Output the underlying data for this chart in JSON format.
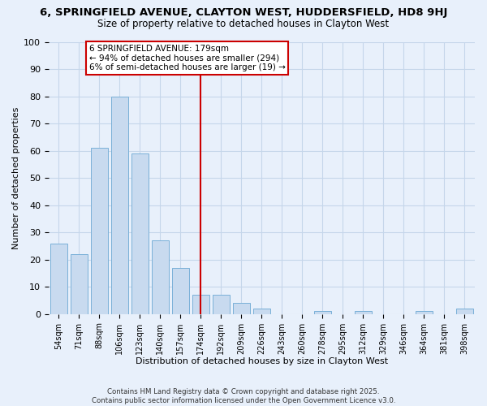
{
  "title": "6, SPRINGFIELD AVENUE, CLAYTON WEST, HUDDERSFIELD, HD8 9HJ",
  "subtitle": "Size of property relative to detached houses in Clayton West",
  "xlabel": "Distribution of detached houses by size in Clayton West",
  "ylabel": "Number of detached properties",
  "categories": [
    "54sqm",
    "71sqm",
    "88sqm",
    "106sqm",
    "123sqm",
    "140sqm",
    "157sqm",
    "174sqm",
    "192sqm",
    "209sqm",
    "226sqm",
    "243sqm",
    "260sqm",
    "278sqm",
    "295sqm",
    "312sqm",
    "329sqm",
    "346sqm",
    "364sqm",
    "381sqm",
    "398sqm"
  ],
  "values": [
    26,
    22,
    61,
    80,
    59,
    27,
    17,
    7,
    7,
    4,
    2,
    0,
    0,
    1,
    0,
    1,
    0,
    0,
    1,
    0,
    2
  ],
  "bar_color": "#c8daef",
  "bar_edge_color": "#7ab0d8",
  "grid_color": "#c5d6ea",
  "background_color": "#e8f0fb",
  "vline_color": "#cc0000",
  "annotation_line1": "6 SPRINGFIELD AVENUE: 179sqm",
  "annotation_line2": "← 94% of detached houses are smaller (294)",
  "annotation_line3": "6% of semi-detached houses are larger (19) →",
  "annotation_box_edge": "#cc0000",
  "ylim": [
    0,
    100
  ],
  "yticks": [
    0,
    10,
    20,
    30,
    40,
    50,
    60,
    70,
    80,
    90,
    100
  ],
  "footnote1": "Contains HM Land Registry data © Crown copyright and database right 2025.",
  "footnote2": "Contains public sector information licensed under the Open Government Licence v3.0."
}
